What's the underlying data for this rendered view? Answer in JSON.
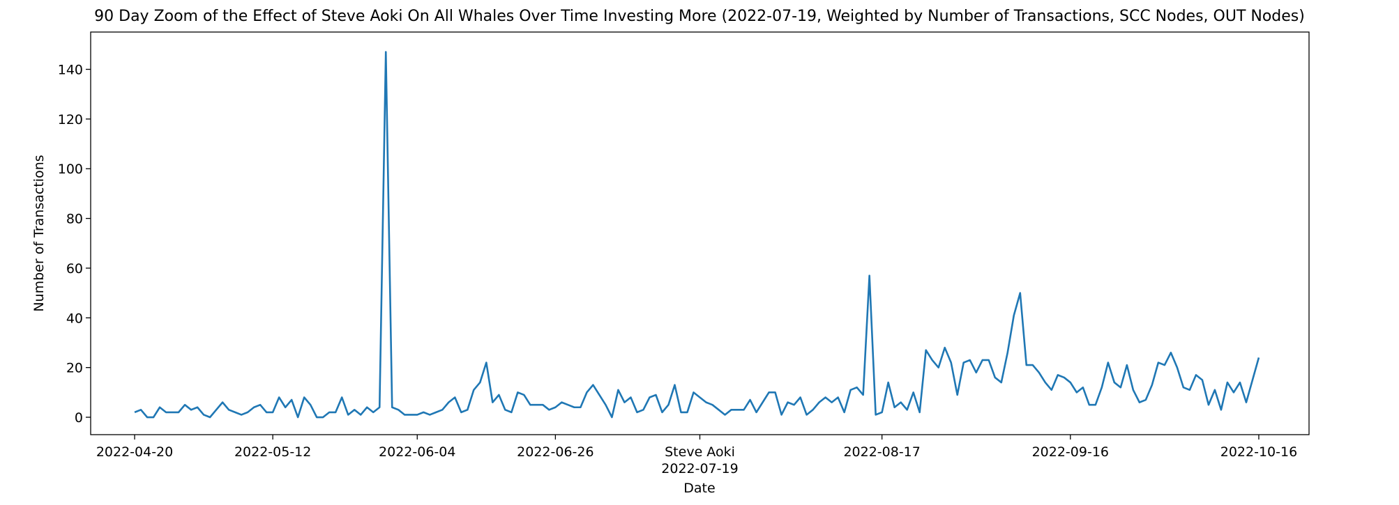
{
  "chart_data": {
    "type": "line",
    "title": "90 Day Zoom of the Effect of Steve Aoki On All Whales Over Time Investing More (2022-07-19, Weighted by Number of Transactions, SCC Nodes, OUT Nodes)",
    "xlabel": "Date",
    "ylabel": "Number of Transactions",
    "ylim": [
      -7,
      155
    ],
    "xlim": [
      "2022-04-13",
      "2022-10-24"
    ],
    "grid": false,
    "line_color": "#1f77b4",
    "y_ticks": [
      0,
      20,
      40,
      60,
      80,
      100,
      120,
      140
    ],
    "x_ticks": [
      {
        "date": "2022-04-20",
        "label": "2022-04-20"
      },
      {
        "date": "2022-05-12",
        "label": "2022-05-12"
      },
      {
        "date": "2022-06-04",
        "label": "2022-06-04"
      },
      {
        "date": "2022-06-26",
        "label": "2022-06-26"
      },
      {
        "date": "2022-07-19",
        "label": "Steve Aoki",
        "label2": "2022-07-19"
      },
      {
        "date": "2022-08-17",
        "label": "2022-08-17"
      },
      {
        "date": "2022-09-16",
        "label": "2022-09-16"
      },
      {
        "date": "2022-10-16",
        "label": "2022-10-16"
      }
    ],
    "start_date": "2022-04-20",
    "values": [
      2,
      3,
      0,
      0,
      4,
      2,
      2,
      2,
      5,
      3,
      4,
      1,
      0,
      3,
      6,
      3,
      2,
      1,
      2,
      4,
      5,
      2,
      2,
      8,
      4,
      7,
      0,
      8,
      5,
      0,
      0,
      2,
      2,
      8,
      1,
      3,
      1,
      4,
      2,
      4,
      147,
      4,
      3,
      1,
      1,
      1,
      2,
      1,
      2,
      3,
      6,
      8,
      2,
      3,
      11,
      14,
      22,
      6,
      9,
      3,
      2,
      10,
      9,
      5,
      5,
      5,
      3,
      4,
      6,
      5,
      4,
      4,
      10,
      13,
      9,
      5,
      0,
      11,
      6,
      8,
      2,
      3,
      8,
      9,
      2,
      5,
      13,
      2,
      2,
      10,
      8,
      6,
      5,
      3,
      1,
      3,
      3,
      3,
      7,
      2,
      6,
      10,
      10,
      1,
      6,
      5,
      8,
      1,
      3,
      6,
      8,
      6,
      8,
      2,
      11,
      12,
      9,
      57,
      1,
      2,
      14,
      4,
      6,
      3,
      10,
      2,
      27,
      23,
      20,
      28,
      22,
      9,
      22,
      23,
      18,
      23,
      23,
      16,
      14,
      26,
      41,
      50,
      21,
      21,
      18,
      14,
      11,
      17,
      16,
      14,
      10,
      12,
      5,
      5,
      12,
      22,
      14,
      12,
      21,
      11,
      6,
      7,
      13,
      22,
      21,
      26,
      20,
      12,
      11,
      17,
      15,
      5,
      11,
      3,
      14,
      10,
      14,
      6,
      15,
      24
    ]
  }
}
